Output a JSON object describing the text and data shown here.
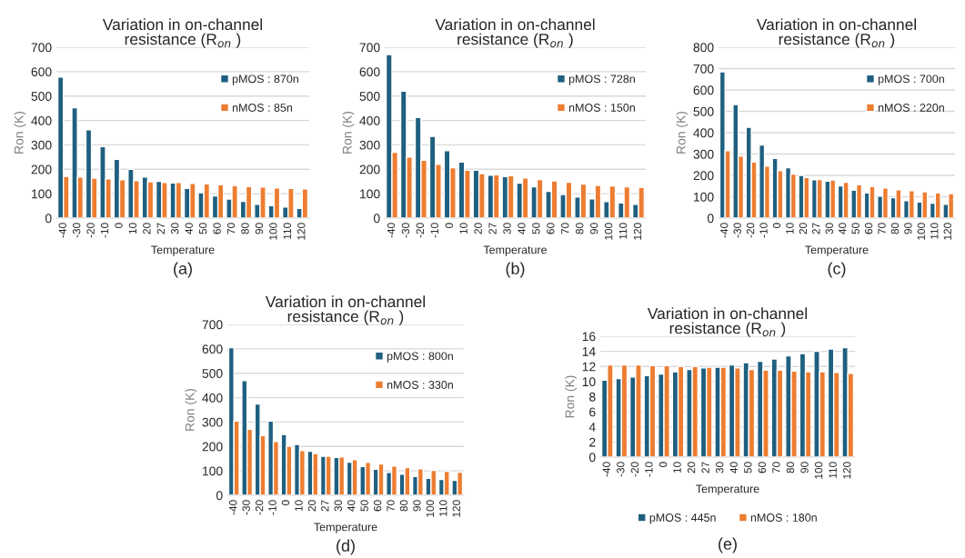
{
  "chart_data": [
    {
      "type": "bar",
      "title": "Variation in on-channel resistance (R$_{on}$ )",
      "xlabel": "Temperature",
      "ylabel": "Ron (K)",
      "annotations": [
        "(a)"
      ],
      "categories": [
        "-40",
        "-30",
        "-20",
        "-10",
        "0",
        "10",
        "20",
        "27",
        "30",
        "40",
        "50",
        "60",
        "70",
        "80",
        "90",
        "100",
        "110",
        "120"
      ],
      "ylim": [
        0,
        700
      ],
      "yticks": [
        0,
        100,
        200,
        300,
        400,
        500,
        600,
        700
      ],
      "grid": "y",
      "legend": "top right",
      "series": [
        {
          "name": "pMOS : 870n",
          "color": "#1f5f80",
          "values": [
            578,
            452,
            362,
            293,
            241,
            200,
            168,
            151,
            144,
            122,
            104,
            91,
            78,
            69,
            57,
            51,
            45,
            40
          ]
        },
        {
          "name": "nMOS : 85n",
          "color": "#ed7d31",
          "values": [
            171,
            168,
            164,
            161,
            157,
            153,
            149,
            146,
            146,
            142,
            140,
            137,
            133,
            129,
            127,
            124,
            122,
            120
          ]
        }
      ]
    },
    {
      "type": "bar",
      "title": "Variation in on-channel resistance (R$_{on}$ )",
      "xlabel": "Temperature",
      "ylabel": "Ron (K)",
      "annotations": [
        "(b)"
      ],
      "categories": [
        "-40",
        "-30",
        "-20",
        "-10",
        "0",
        "10",
        "20",
        "27",
        "30",
        "40",
        "50",
        "60",
        "70",
        "80",
        "90",
        "100",
        "110",
        "120"
      ],
      "ylim": [
        0,
        700
      ],
      "yticks": [
        0,
        100,
        200,
        300,
        400,
        500,
        600,
        700
      ],
      "grid": "y",
      "legend": "top right",
      "series": [
        {
          "name": "pMOS : 728n",
          "color": "#1f5f80",
          "values": [
            670,
            520,
            412,
            335,
            276,
            230,
            196,
            176,
            170,
            143,
            128,
            110,
            97,
            86,
            79,
            68,
            62,
            57
          ]
        },
        {
          "name": "nMOS : 150n",
          "color": "#ed7d31",
          "values": [
            270,
            250,
            237,
            220,
            206,
            196,
            182,
            178,
            174,
            165,
            158,
            152,
            147,
            139,
            134,
            132,
            128,
            125
          ]
        }
      ]
    },
    {
      "type": "bar",
      "title": "Variation in on-channel resistance (R$_{on}$ )",
      "xlabel": "Temperature",
      "ylabel": "Ron (K)",
      "annotations": [
        "(c)"
      ],
      "categories": [
        "-40",
        "-30",
        "-20",
        "-10",
        "0",
        "10",
        "20",
        "27",
        "30",
        "40",
        "50",
        "60",
        "70",
        "80",
        "90",
        "100",
        "110",
        "120"
      ],
      "ylim": [
        0,
        800
      ],
      "yticks": [
        0,
        100,
        200,
        300,
        400,
        500,
        600,
        700,
        800
      ],
      "grid": "y",
      "legend": "top right",
      "series": [
        {
          "name": "pMOS : 700n",
          "color": "#1f5f80",
          "values": [
            685,
            532,
            425,
            342,
            280,
            236,
            200,
            180,
            173,
            151,
            131,
            118,
            103,
            96,
            82,
            75,
            70,
            65
          ]
        },
        {
          "name": "nMOS : 220n",
          "color": "#ed7d31",
          "values": [
            316,
            290,
            263,
            243,
            222,
            206,
            190,
            181,
            178,
            168,
            156,
            148,
            141,
            133,
            128,
            123,
            118,
            115
          ]
        }
      ]
    },
    {
      "type": "bar",
      "title": "Variation in on-channel resistance (R$_{on}$ )",
      "xlabel": "Temperature",
      "ylabel": "Ron (K)",
      "annotations": [
        "(d)"
      ],
      "categories": [
        "-40",
        "-30",
        "-20",
        "-10",
        "0",
        "10",
        "20",
        "27",
        "30",
        "40",
        "50",
        "60",
        "70",
        "80",
        "90",
        "100",
        "110",
        "120"
      ],
      "ylim": [
        0,
        700
      ],
      "yticks": [
        0,
        100,
        200,
        300,
        400,
        500,
        600,
        700
      ],
      "grid": "y",
      "legend": "top right",
      "series": [
        {
          "name": "pMOS : 800n",
          "color": "#1f5f80",
          "values": [
            605,
            470,
            374,
            304,
            249,
            208,
            180,
            160,
            155,
            136,
            118,
            107,
            94,
            86,
            77,
            70,
            65,
            61
          ]
        },
        {
          "name": "nMOS : 330n",
          "color": "#ed7d31",
          "values": [
            304,
            271,
            245,
            220,
            201,
            183,
            171,
            160,
            157,
            146,
            135,
            128,
            120,
            113,
            109,
            102,
            98,
            95
          ]
        }
      ]
    },
    {
      "type": "bar",
      "title": "Variation in on-channel resistance (R$_{on}$ )",
      "xlabel": "Temperature",
      "ylabel": "Ron (K)",
      "annotations": [
        "(e)"
      ],
      "categories": [
        "-40",
        "-30",
        "-20",
        "-10",
        "0",
        "10",
        "20",
        "27",
        "30",
        "40",
        "50",
        "60",
        "70",
        "80",
        "90",
        "100",
        "110",
        "120"
      ],
      "ylim": [
        0,
        16
      ],
      "yticks": [
        0,
        2,
        4,
        6,
        8,
        10,
        12,
        14,
        16
      ],
      "grid": "y",
      "legend": "bottom",
      "series": [
        {
          "name": "pMOS : 445n",
          "color": "#1f5f80",
          "values": [
            10.2,
            10.4,
            10.6,
            10.8,
            11.0,
            11.3,
            11.6,
            11.8,
            11.9,
            12.2,
            12.5,
            12.7,
            13.0,
            13.4,
            13.7,
            14.0,
            14.3,
            14.5
          ]
        },
        {
          "name": "nMOS : 180n",
          "color": "#ed7d31",
          "values": [
            12.2,
            12.2,
            12.2,
            12.1,
            12.1,
            12.0,
            12.0,
            11.9,
            11.9,
            11.8,
            11.6,
            11.5,
            11.5,
            11.4,
            11.3,
            11.3,
            11.2,
            11.1
          ]
        }
      ]
    }
  ]
}
